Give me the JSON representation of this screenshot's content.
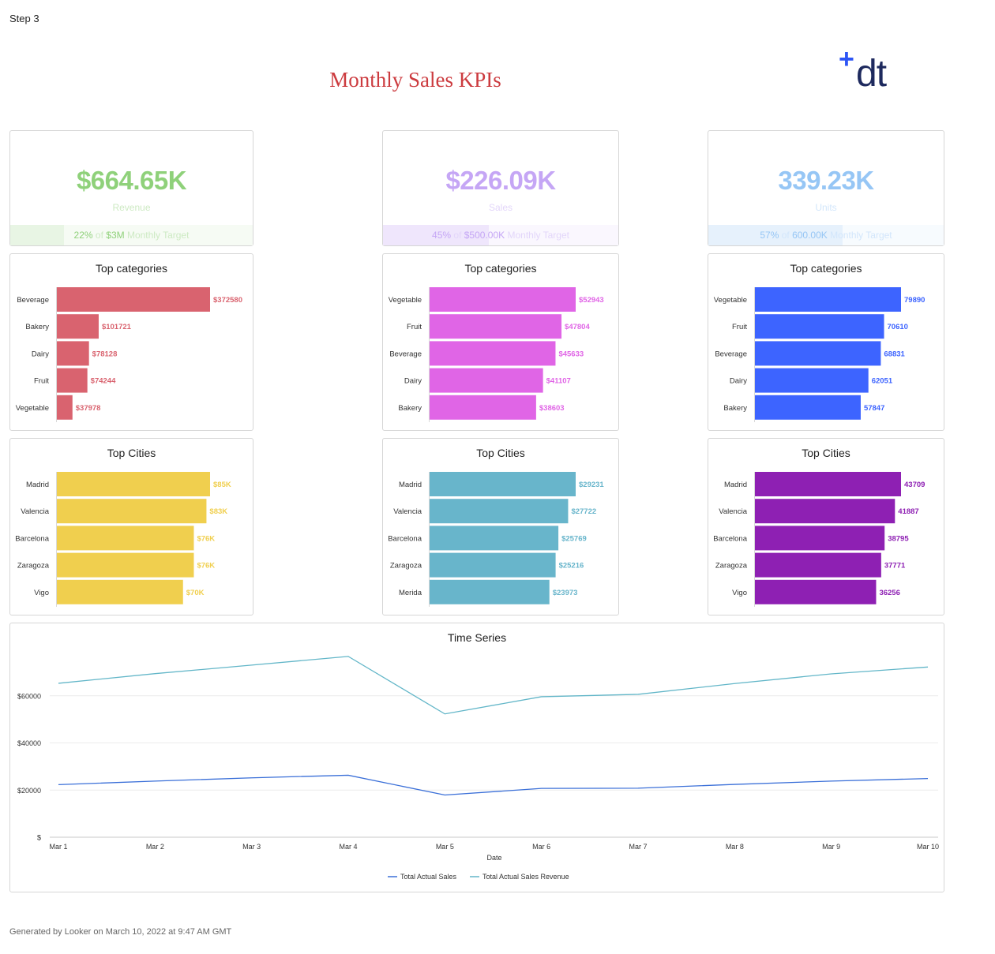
{
  "header": {
    "step": "Step 3",
    "title": "Monthly Sales KPIs"
  },
  "logo": {
    "plus": "+",
    "text": "dt"
  },
  "kpis": [
    {
      "value": "$664.65K",
      "label": "Revenue",
      "pct": "22%",
      "of": "of",
      "target": "$3M",
      "suffix": "Monthly Target",
      "fraction": 0.22,
      "color": "#8fd17a",
      "label_color": "#cdeac3",
      "bg": "#f6fbf4",
      "fill": "#e8f5e4"
    },
    {
      "value": "$226.09K",
      "label": "Sales",
      "pct": "45%",
      "of": "of",
      "target": "$500.00K",
      "suffix": "Monthly Target",
      "fraction": 0.45,
      "color": "#c5a6f5",
      "label_color": "#e3d6fa",
      "bg": "#faf7fe",
      "fill": "#efe6fc"
    },
    {
      "value": "339.23K",
      "label": "Units",
      "pct": "57%",
      "of": "of",
      "target": "600.00K",
      "suffix": "Monthly Target",
      "fraction": 0.57,
      "color": "#96c6f5",
      "label_color": "#d2e6fb",
      "bg": "#f7fbfe",
      "fill": "#e6f1fc"
    }
  ],
  "chart_data": [
    {
      "type": "bar",
      "orientation": "horizontal",
      "title": "Top categories",
      "color": "#d9636f",
      "categories": [
        "Beverage",
        "Bakery",
        "Dairy",
        "Fruit",
        "Vegetable"
      ],
      "values": [
        372580,
        101721,
        78128,
        74244,
        37978
      ],
      "labels": [
        "$372580",
        "$101721",
        "$78128",
        "$74244",
        "$37978"
      ]
    },
    {
      "type": "bar",
      "orientation": "horizontal",
      "title": "Top categories",
      "color": "#e065e6",
      "categories": [
        "Vegetable",
        "Fruit",
        "Beverage",
        "Dairy",
        "Bakery"
      ],
      "values": [
        52943,
        47804,
        45633,
        41107,
        38603
      ],
      "labels": [
        "$52943",
        "$47804",
        "$45633",
        "$41107",
        "$38603"
      ]
    },
    {
      "type": "bar",
      "orientation": "horizontal",
      "title": "Top categories",
      "color": "#3d64ff",
      "categories": [
        "Vegetable",
        "Fruit",
        "Beverage",
        "Dairy",
        "Bakery"
      ],
      "values": [
        79890,
        70610,
        68831,
        62051,
        57847
      ],
      "labels": [
        "79890",
        "70610",
        "68831",
        "62051",
        "57847"
      ]
    },
    {
      "type": "bar",
      "orientation": "horizontal",
      "title": "Top Cities",
      "color": "#f0cf4e",
      "categories": [
        "Madrid",
        "Valencia",
        "Barcelona",
        "Zaragoza",
        "Vigo"
      ],
      "values": [
        85000,
        83000,
        76000,
        76000,
        70000
      ],
      "labels": [
        "$85K",
        "$83K",
        "$76K",
        "$76K",
        "$70K"
      ]
    },
    {
      "type": "bar",
      "orientation": "horizontal",
      "title": "Top Cities",
      "color": "#68b5cb",
      "categories": [
        "Madrid",
        "Valencia",
        "Barcelona",
        "Zaragoza",
        "Merida"
      ],
      "values": [
        29231,
        27722,
        25769,
        25216,
        23973
      ],
      "labels": [
        "$29231",
        "$27722",
        "$25769",
        "$25216",
        "$23973"
      ]
    },
    {
      "type": "bar",
      "orientation": "horizontal",
      "title": "Top Cities",
      "color": "#8e20b3",
      "categories": [
        "Madrid",
        "Valencia",
        "Barcelona",
        "Zaragoza",
        "Vigo"
      ],
      "values": [
        43709,
        41887,
        38795,
        37771,
        36256
      ],
      "labels": [
        "43709",
        "41887",
        "38795",
        "37771",
        "36256"
      ]
    },
    {
      "type": "line",
      "title": "Time Series",
      "xlabel": "Date",
      "ylim": [
        0,
        80000
      ],
      "yticks": [
        0,
        20000,
        40000,
        60000
      ],
      "ytick_labels": [
        "$",
        "$20000",
        "$40000",
        "$60000"
      ],
      "x": [
        "Mar 1",
        "Mar 2",
        "Mar 3",
        "Mar 4",
        "Mar 5",
        "Mar 6",
        "Mar 7",
        "Mar 8",
        "Mar 9",
        "Mar 10"
      ],
      "legend_position": "bottom",
      "series": [
        {
          "name": "Total Actual Sales",
          "color": "#3a6fd8",
          "values": [
            22300,
            23800,
            25200,
            26300,
            17900,
            20700,
            20800,
            22400,
            23800,
            24900
          ]
        },
        {
          "name": "Total Actual Sales Revenue",
          "color": "#62b6c8",
          "values": [
            65300,
            69400,
            73000,
            76700,
            52300,
            59600,
            60600,
            65200,
            69300,
            72200
          ]
        }
      ]
    }
  ],
  "footer": {
    "text": "Generated by Looker on March 10, 2022 at 9:47 AM GMT"
  }
}
